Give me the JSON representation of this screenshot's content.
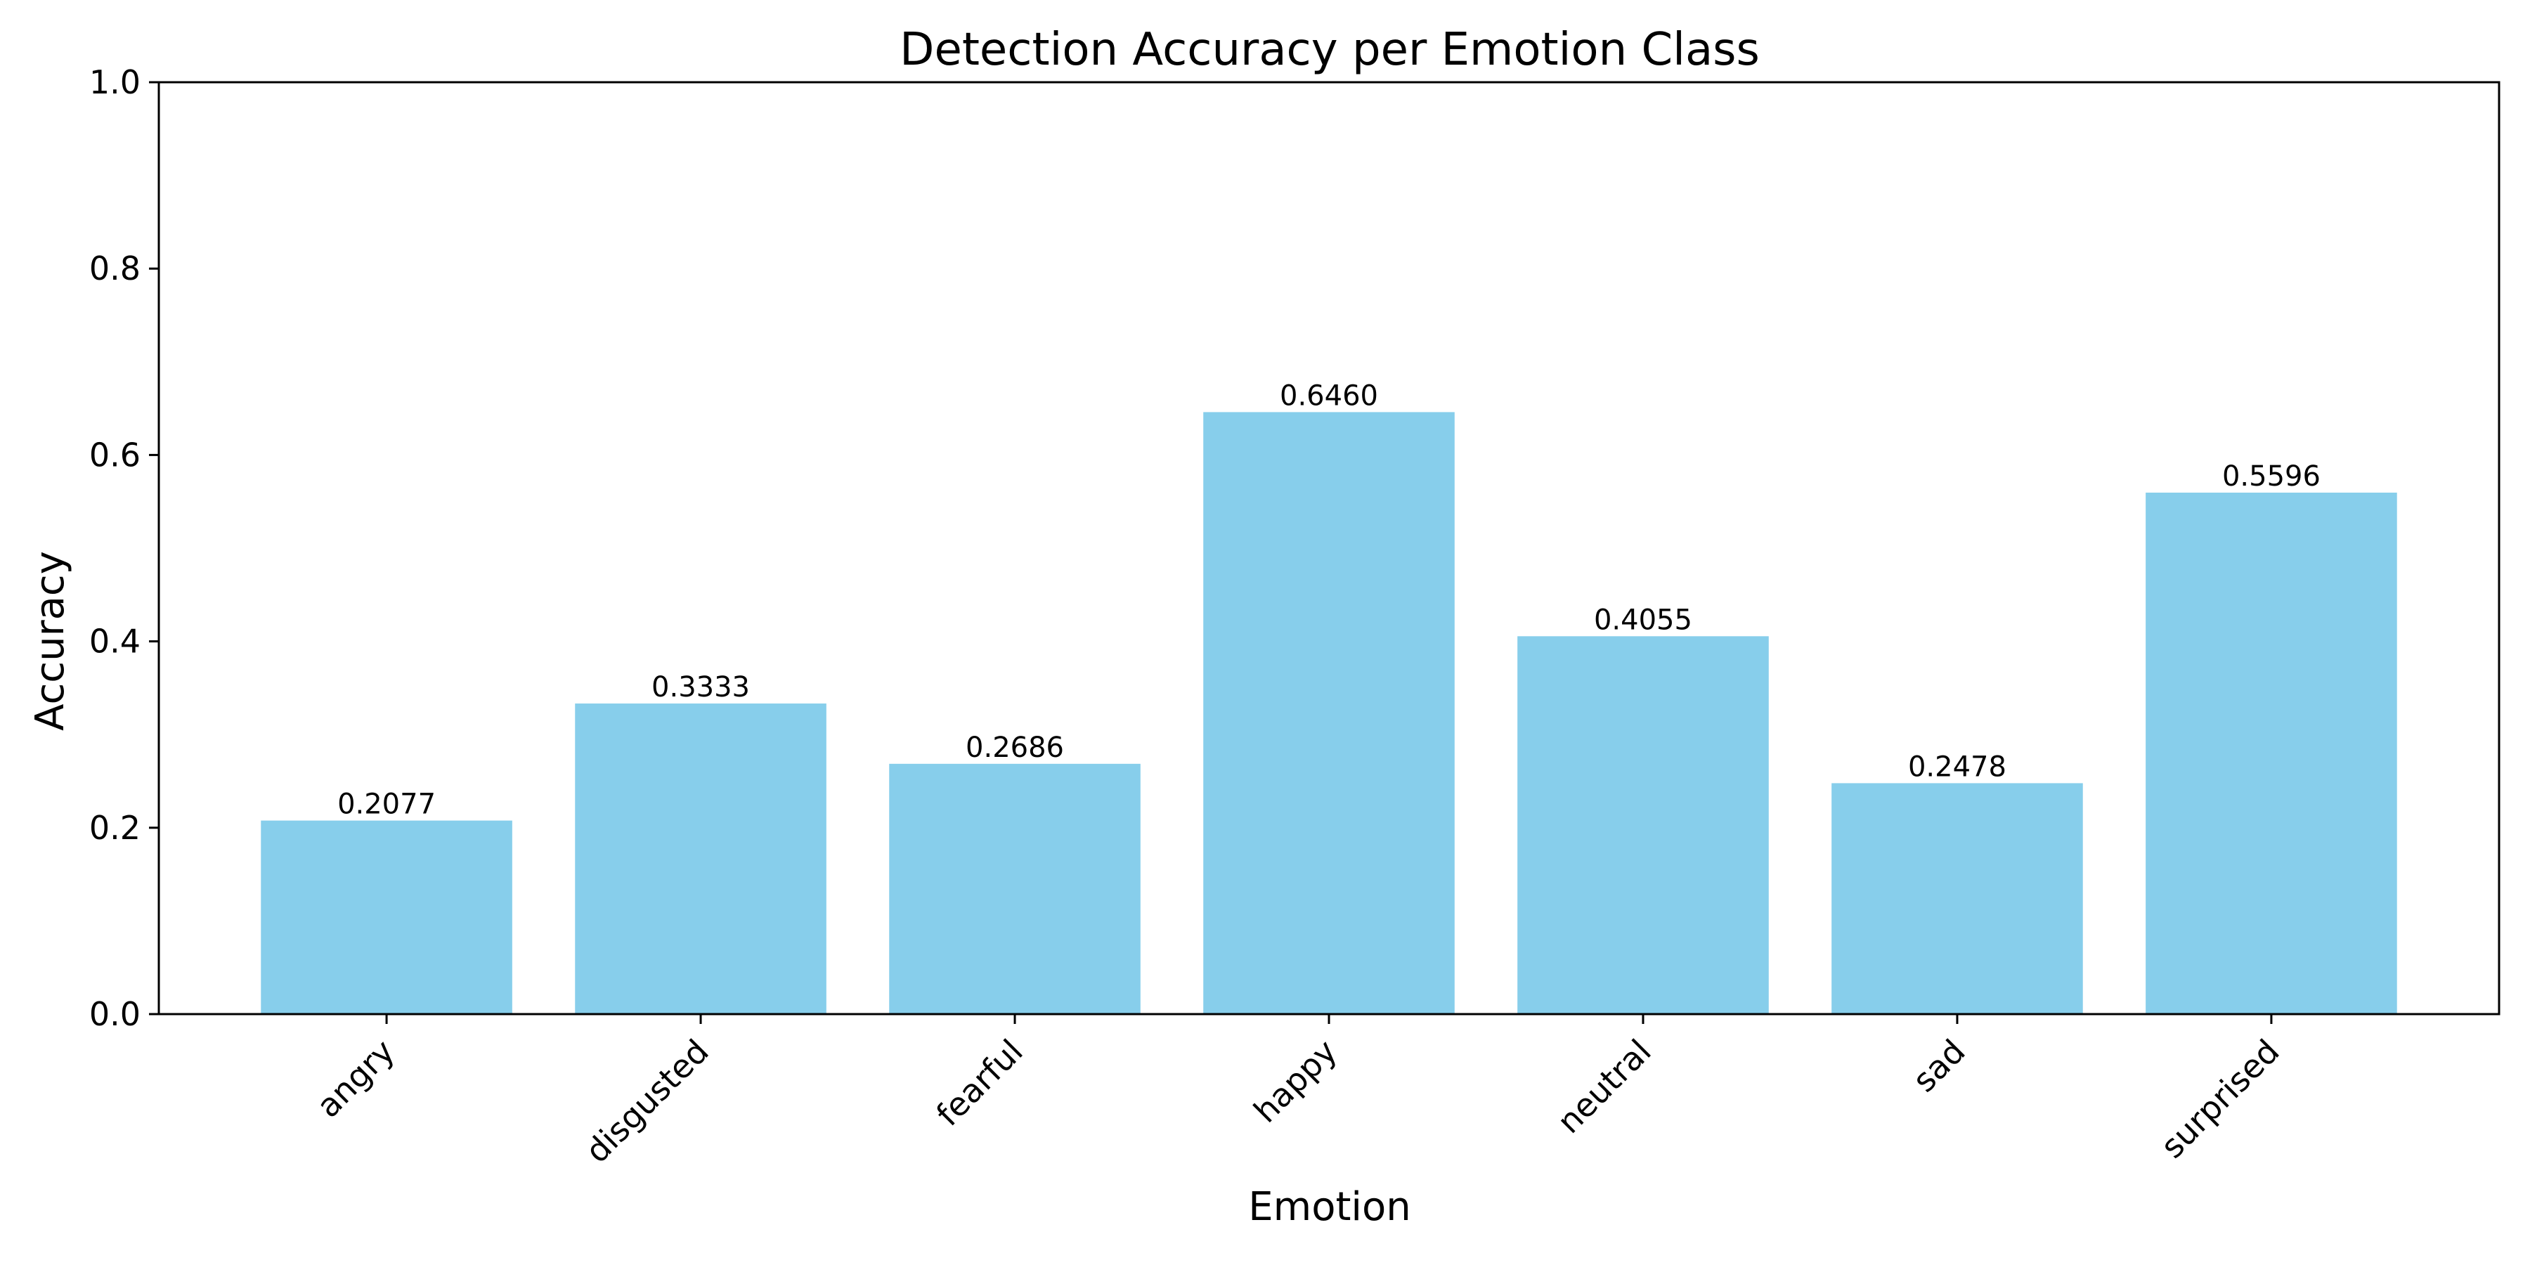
{
  "chart_data": {
    "type": "bar",
    "title": "Detection Accuracy per Emotion Class",
    "xlabel": "Emotion",
    "ylabel": "Accuracy",
    "categories": [
      "angry",
      "disgusted",
      "fearful",
      "happy",
      "neutral",
      "sad",
      "surprised"
    ],
    "values": [
      0.2077,
      0.3333,
      0.2686,
      0.646,
      0.4055,
      0.2478,
      0.5596
    ],
    "value_labels": [
      "0.2077",
      "0.3333",
      "0.2686",
      "0.6460",
      "0.4055",
      "0.2478",
      "0.5596"
    ],
    "ylim": [
      0,
      1.0
    ],
    "yticks": [
      0.0,
      0.2,
      0.4,
      0.6,
      0.8,
      1.0
    ],
    "ytick_labels": [
      "0.0",
      "0.2",
      "0.4",
      "0.6",
      "0.8",
      "1.0"
    ],
    "grid": false,
    "legend": "none",
    "bar_color": "#87CEEB",
    "axis_color": "#000000"
  }
}
